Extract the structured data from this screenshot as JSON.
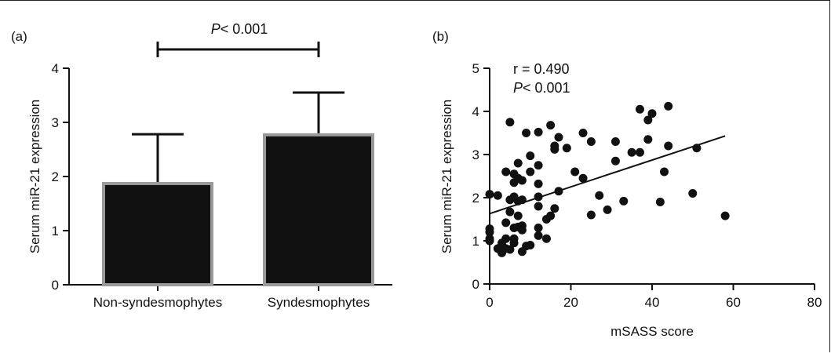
{
  "chart_data": [
    {
      "type": "bar",
      "panel_label": "(a)",
      "ylabel": "Serum miR-21 expression",
      "xlabel": "",
      "ylim": [
        0,
        4
      ],
      "yticks": [
        "0",
        "1",
        "2",
        "3",
        "4"
      ],
      "categories": [
        "Non-syndesmophytes",
        "Syndesmophytes"
      ],
      "values": [
        1.87,
        2.77
      ],
      "error_upper": [
        2.78,
        3.55
      ],
      "significance": {
        "p_prefix": "P",
        "p_rest": "< 0.001"
      },
      "bar_color": "#111111",
      "bar_edge_color": "#9a9a9a"
    },
    {
      "type": "scatter",
      "panel_label": "(b)",
      "xlabel": "mSASS score",
      "ylabel": "Serum miR-21 expression",
      "xlim": [
        0,
        80
      ],
      "ylim": [
        0,
        5
      ],
      "xticks": [
        "0",
        "20",
        "40",
        "60",
        "80"
      ],
      "yticks": [
        "0",
        "1",
        "2",
        "3",
        "4",
        "5"
      ],
      "annotation": {
        "r_text": "r = 0.490",
        "p_prefix": "P",
        "p_rest": "< 0.001"
      },
      "fit_line": {
        "x": [
          0,
          58
        ],
        "y": [
          1.63,
          3.43
        ]
      },
      "point_color": "#111111",
      "points": [
        [
          0,
          1.0
        ],
        [
          0,
          1.05
        ],
        [
          0,
          1.2
        ],
        [
          0,
          1.28
        ],
        [
          0,
          2.08
        ],
        [
          2,
          2.05
        ],
        [
          2,
          0.82
        ],
        [
          3,
          0.78
        ],
        [
          3,
          0.72
        ],
        [
          3,
          0.95
        ],
        [
          4,
          2.6
        ],
        [
          4,
          1.05
        ],
        [
          4,
          1.42
        ],
        [
          4,
          0.82
        ],
        [
          5,
          3.75
        ],
        [
          5,
          1.95
        ],
        [
          5,
          1.67
        ],
        [
          5,
          0.8
        ],
        [
          6,
          2.55
        ],
        [
          6,
          2.35
        ],
        [
          6,
          2.02
        ],
        [
          6,
          1.3
        ],
        [
          6,
          0.95
        ],
        [
          6,
          1.05
        ],
        [
          7,
          2.45
        ],
        [
          7,
          2.8
        ],
        [
          7,
          1.92
        ],
        [
          7,
          1.58
        ],
        [
          7,
          1.32
        ],
        [
          8,
          2.4
        ],
        [
          8,
          1.95
        ],
        [
          8,
          1.35
        ],
        [
          8,
          1.25
        ],
        [
          8,
          0.75
        ],
        [
          9,
          3.5
        ],
        [
          9,
          0.88
        ],
        [
          10,
          2.97
        ],
        [
          10,
          2.6
        ],
        [
          10,
          0.9
        ],
        [
          12,
          3.52
        ],
        [
          12,
          2.75
        ],
        [
          12,
          2.32
        ],
        [
          12,
          1.8
        ],
        [
          12,
          2.02
        ],
        [
          12,
          1.3
        ],
        [
          12,
          1.12
        ],
        [
          14,
          1.5
        ],
        [
          14,
          1.05
        ],
        [
          15,
          3.68
        ],
        [
          15,
          1.58
        ],
        [
          16,
          3.2
        ],
        [
          16,
          3.12
        ],
        [
          16,
          1.75
        ],
        [
          17,
          3.4
        ],
        [
          17,
          2.15
        ],
        [
          19,
          3.15
        ],
        [
          21,
          2.6
        ],
        [
          23,
          3.5
        ],
        [
          23,
          2.45
        ],
        [
          25,
          3.3
        ],
        [
          25,
          1.6
        ],
        [
          27,
          2.05
        ],
        [
          29,
          1.72
        ],
        [
          31,
          3.3
        ],
        [
          31,
          2.85
        ],
        [
          33,
          1.92
        ],
        [
          35,
          3.05
        ],
        [
          37,
          3.05
        ],
        [
          37,
          4.05
        ],
        [
          39,
          3.35
        ],
        [
          39,
          3.8
        ],
        [
          40,
          3.95
        ],
        [
          42,
          1.9
        ],
        [
          43,
          2.6
        ],
        [
          44,
          3.2
        ],
        [
          44,
          4.12
        ],
        [
          50,
          2.1
        ],
        [
          51,
          3.15
        ],
        [
          58,
          1.58
        ]
      ]
    }
  ]
}
